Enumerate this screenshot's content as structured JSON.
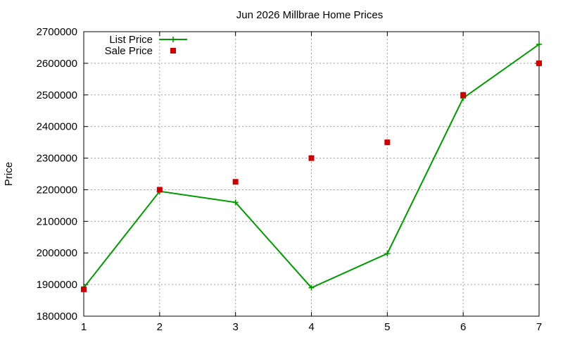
{
  "chart_data": {
    "type": "line",
    "title": "Jun 2026 Millbrae Home Prices",
    "xlabel": "",
    "ylabel": "Price",
    "x": [
      1,
      2,
      3,
      4,
      5,
      6,
      7
    ],
    "xlim": [
      1,
      7
    ],
    "ylim": [
      1800000,
      2700000
    ],
    "yticks": [
      1800000,
      1900000,
      2000000,
      2100000,
      2200000,
      2300000,
      2400000,
      2500000,
      2600000,
      2700000
    ],
    "xticks": [
      1,
      2,
      3,
      4,
      5,
      6,
      7
    ],
    "grid": true,
    "legend_position": "top-left",
    "series": [
      {
        "name": "List Price",
        "style": "line-with-plus-markers",
        "color": "#009900",
        "values": [
          1890000,
          2195000,
          2160000,
          1890000,
          1998000,
          2490000,
          2660000
        ]
      },
      {
        "name": "Sale Price",
        "style": "square-markers",
        "color": "#cc0000",
        "values": [
          1885000,
          2200000,
          2225000,
          2300000,
          2350000,
          2500000,
          2600000
        ]
      }
    ]
  }
}
